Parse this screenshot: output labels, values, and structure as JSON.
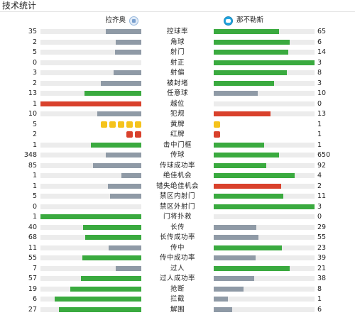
{
  "title": "技术统计",
  "teams": {
    "home": "拉齐奥",
    "away": "那不勒斯"
  },
  "colors": {
    "better": "#3aaa3f",
    "worse": "#8f9aa6",
    "negative": "#d9412c",
    "yellow_card": "#f5c31c",
    "red_card": "#d9412c",
    "track": "#ececec"
  },
  "stats": [
    {
      "label": "控球率",
      "home": "35",
      "away": "65",
      "home_pct": 0.35,
      "away_pct": 0.65,
      "home_color": "worse",
      "away_color": "better"
    },
    {
      "label": "角球",
      "home": "2",
      "away": "6",
      "home_pct": 0.25,
      "away_pct": 0.75,
      "home_color": "worse",
      "away_color": "better"
    },
    {
      "label": "射门",
      "home": "5",
      "away": "14",
      "home_pct": 0.263,
      "away_pct": 0.737,
      "home_color": "worse",
      "away_color": "better"
    },
    {
      "label": "射正",
      "home": "0",
      "away": "3",
      "home_pct": 0.0,
      "away_pct": 1.0,
      "home_color": "worse",
      "away_color": "better"
    },
    {
      "label": "射偏",
      "home": "3",
      "away": "8",
      "home_pct": 0.273,
      "away_pct": 0.727,
      "home_color": "worse",
      "away_color": "better"
    },
    {
      "label": "被封堵",
      "home": "2",
      "away": "3",
      "home_pct": 0.4,
      "away_pct": 0.6,
      "home_color": "worse",
      "away_color": "better"
    },
    {
      "label": "任意球",
      "home": "13",
      "away": "10",
      "home_pct": 0.565,
      "away_pct": 0.435,
      "home_color": "better",
      "away_color": "worse"
    },
    {
      "label": "越位",
      "home": "1",
      "away": "0",
      "home_pct": 1.0,
      "away_pct": 0.0,
      "home_color": "negative",
      "away_color": "worse"
    },
    {
      "label": "犯规",
      "home": "10",
      "away": "13",
      "home_pct": 0.435,
      "away_pct": 0.565,
      "home_color": "worse",
      "away_color": "negative"
    },
    {
      "label": "黄牌",
      "home": "5",
      "away": "1",
      "type": "yellow",
      "home_count": 5,
      "away_count": 1
    },
    {
      "label": "红牌",
      "home": "2",
      "away": "1",
      "type": "red",
      "home_count": 2,
      "away_count": 1
    },
    {
      "label": "击中门框",
      "home": "1",
      "away": "1",
      "home_pct": 0.5,
      "away_pct": 0.5,
      "home_color": "better",
      "away_color": "better"
    },
    {
      "label": "传球",
      "home": "348",
      "away": "650",
      "home_pct": 0.349,
      "away_pct": 0.651,
      "home_color": "worse",
      "away_color": "better"
    },
    {
      "label": "传球成功率",
      "home": "85",
      "away": "92",
      "home_pct": 0.48,
      "away_pct": 0.52,
      "home_color": "worse",
      "away_color": "better"
    },
    {
      "label": "绝佳机会",
      "home": "1",
      "away": "4",
      "home_pct": 0.2,
      "away_pct": 0.8,
      "home_color": "worse",
      "away_color": "better"
    },
    {
      "label": "错失绝佳机会",
      "home": "1",
      "away": "2",
      "home_pct": 0.333,
      "away_pct": 0.667,
      "home_color": "worse",
      "away_color": "negative"
    },
    {
      "label": "禁区内射门",
      "home": "5",
      "away": "11",
      "home_pct": 0.313,
      "away_pct": 0.687,
      "home_color": "worse",
      "away_color": "better"
    },
    {
      "label": "禁区外射门",
      "home": "0",
      "away": "3",
      "home_pct": 0.0,
      "away_pct": 1.0,
      "home_color": "worse",
      "away_color": "better"
    },
    {
      "label": "门将扑救",
      "home": "1",
      "away": "0",
      "home_pct": 1.0,
      "away_pct": 0.0,
      "home_color": "better",
      "away_color": "worse"
    },
    {
      "label": "长传",
      "home": "40",
      "away": "29",
      "home_pct": 0.58,
      "away_pct": 0.42,
      "home_color": "better",
      "away_color": "worse"
    },
    {
      "label": "长传成功率",
      "home": "68",
      "away": "55",
      "home_pct": 0.553,
      "away_pct": 0.447,
      "home_color": "better",
      "away_color": "worse"
    },
    {
      "label": "传中",
      "home": "11",
      "away": "23",
      "home_pct": 0.324,
      "away_pct": 0.676,
      "home_color": "worse",
      "away_color": "better"
    },
    {
      "label": "传中成功率",
      "home": "55",
      "away": "39",
      "home_pct": 0.585,
      "away_pct": 0.415,
      "home_color": "better",
      "away_color": "worse"
    },
    {
      "label": "过人",
      "home": "7",
      "away": "21",
      "home_pct": 0.25,
      "away_pct": 0.75,
      "home_color": "worse",
      "away_color": "better"
    },
    {
      "label": "过人成功率",
      "home": "57",
      "away": "38",
      "home_pct": 0.6,
      "away_pct": 0.4,
      "home_color": "better",
      "away_color": "worse"
    },
    {
      "label": "抢断",
      "home": "19",
      "away": "8",
      "home_pct": 0.704,
      "away_pct": 0.296,
      "home_color": "better",
      "away_color": "worse"
    },
    {
      "label": "拦截",
      "home": "6",
      "away": "1",
      "home_pct": 0.857,
      "away_pct": 0.143,
      "home_color": "better",
      "away_color": "worse"
    },
    {
      "label": "解围",
      "home": "27",
      "away": "6",
      "home_pct": 0.818,
      "away_pct": 0.182,
      "home_color": "better",
      "away_color": "worse"
    }
  ]
}
